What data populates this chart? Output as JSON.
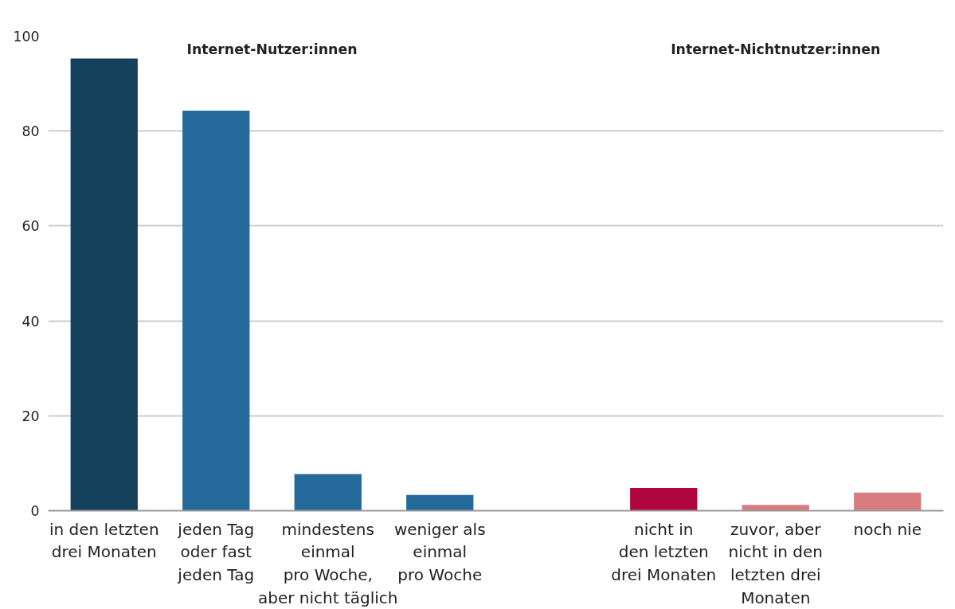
{
  "chart_data": {
    "type": "bar",
    "categories": [
      "in den letzten\ndrei Monaten",
      "jeden Tag\noder fast\njeden Tag",
      "mindestens\neinmal\npro Woche,\naber nicht täglich",
      "weniger als\neinmal\npro Woche",
      null,
      "nicht in\nden letzten\ndrei Monaten",
      "zuvor, aber\nnicht in den\nletzten drei\nMonaten",
      "noch nie"
    ],
    "values": [
      95.3,
      84.3,
      7.7,
      3.3,
      null,
      4.8,
      1.2,
      3.8
    ],
    "colors": [
      "#15415c",
      "#246b9b",
      "#246b9b",
      "#246b9b",
      "#246b9b",
      "#b0053f",
      "#d97c80",
      "#d97c80"
    ],
    "annotations": [
      "Internet-Nutzer:innen",
      "Internet-Nichtnutzer:innen"
    ],
    "ylim": [
      0,
      100
    ],
    "yticks": [
      0,
      20,
      40,
      60,
      80,
      100
    ],
    "grid": "y"
  }
}
